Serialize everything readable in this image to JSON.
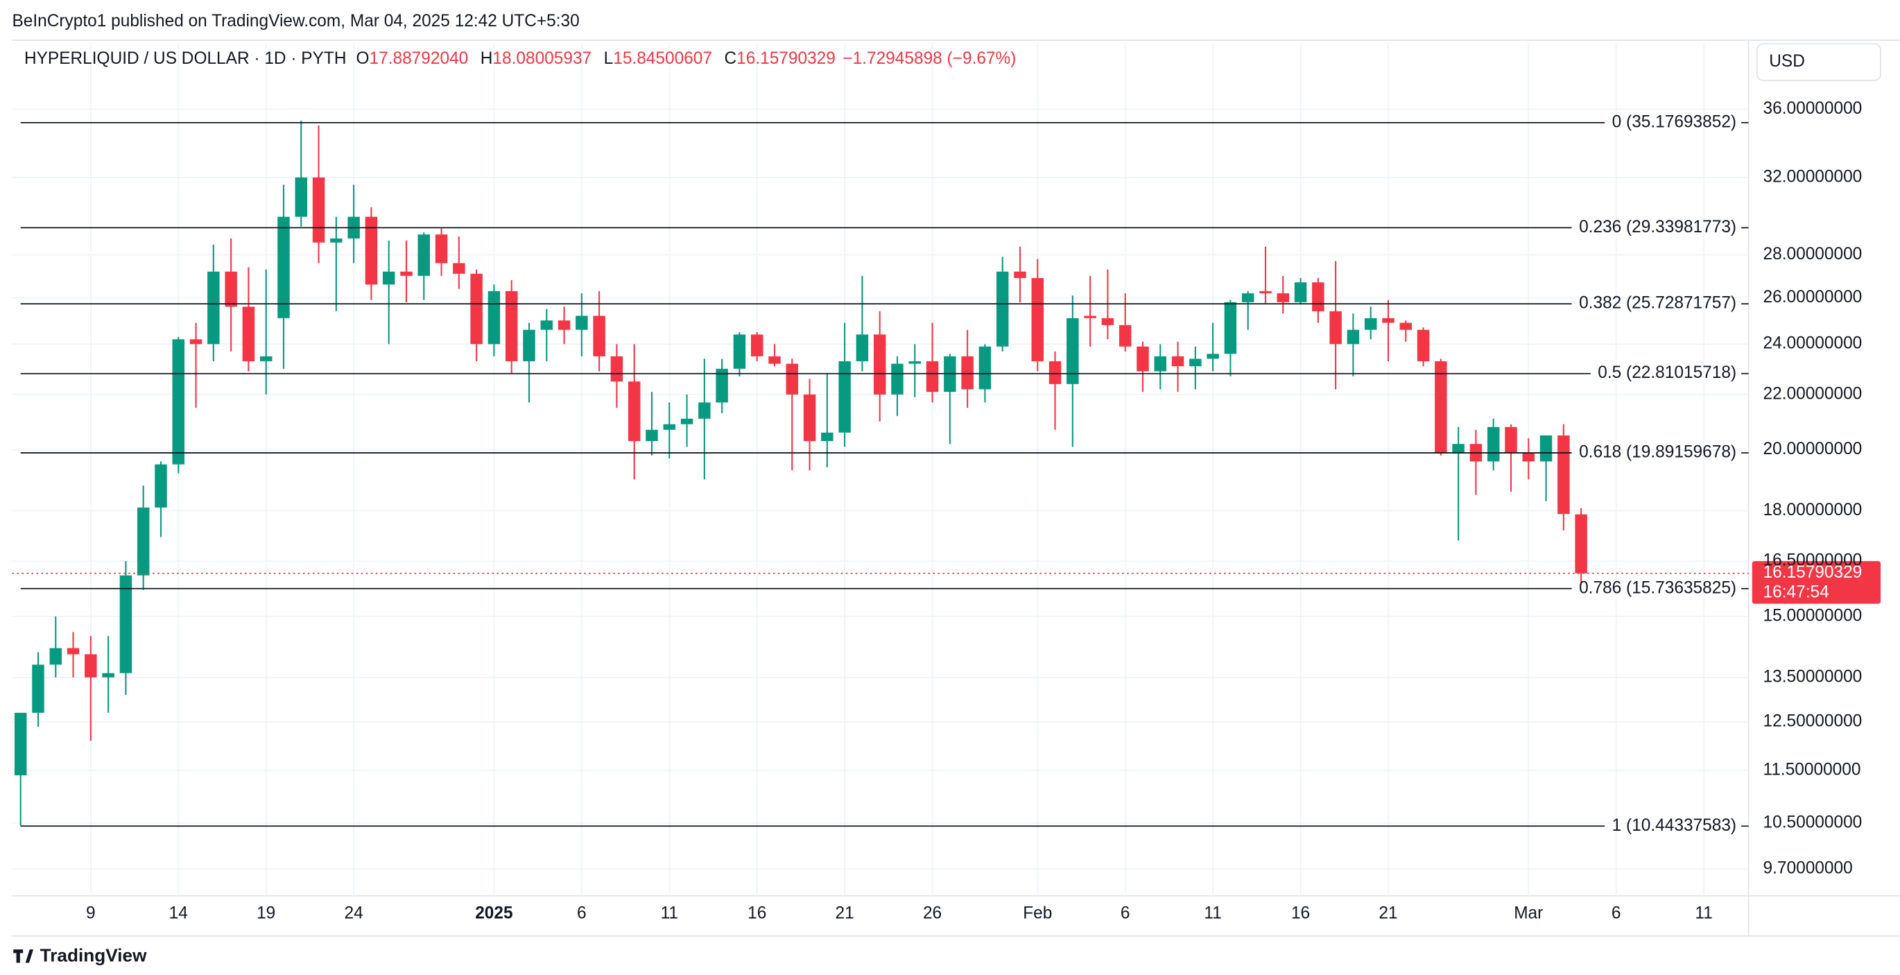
{
  "chart_data": {
    "type": "candlestick",
    "published": "BeInCrypto1 published on TradingView.com, Mar 04, 2025 12:42 UTC+5:30",
    "symbol": "HYPERLIQUID / US DOLLAR · 1D · PYTH",
    "ohlc_legend": [
      {
        "key": "O",
        "value": "17.88792040"
      },
      {
        "key": "H",
        "value": "18.08005937"
      },
      {
        "key": "L",
        "value": "15.84500607"
      },
      {
        "key": "C",
        "value": "16.15790329"
      }
    ],
    "change": "−1.72945898 (−9.67%)",
    "currency": "USD",
    "brand": "TradingView",
    "up_color": "#089981",
    "down_color": "#f23645",
    "log_scale": true,
    "grid": true,
    "ylim": [
      9.26,
      40.3
    ],
    "yticks": [
      {
        "value": 36,
        "label": "36.00000000"
      },
      {
        "value": 32,
        "label": "32.00000000"
      },
      {
        "value": 28,
        "label": "28.00000000"
      },
      {
        "value": 26,
        "label": "26.00000000"
      },
      {
        "value": 24,
        "label": "24.00000000"
      },
      {
        "value": 22,
        "label": "22.00000000"
      },
      {
        "value": 20,
        "label": "20.00000000"
      },
      {
        "value": 18,
        "label": "18.00000000"
      },
      {
        "value": 16.5,
        "label": "16.50000000"
      },
      {
        "value": 15,
        "label": "15.00000000"
      },
      {
        "value": 13.5,
        "label": "13.50000000"
      },
      {
        "value": 12.5,
        "label": "12.50000000"
      },
      {
        "value": 11.5,
        "label": "11.50000000"
      },
      {
        "value": 10.5,
        "label": "10.50000000"
      },
      {
        "value": 9.7,
        "label": "9.70000000"
      }
    ],
    "fib_levels": [
      {
        "value": 35.17693852,
        "label": "0 (35.17693852)"
      },
      {
        "value": 29.33981773,
        "label": "0.236 (29.33981773)"
      },
      {
        "value": 25.72871757,
        "label": "0.382 (25.72871757)"
      },
      {
        "value": 22.81015718,
        "label": "0.5 (22.81015718)"
      },
      {
        "value": 19.89159678,
        "label": "0.618 (19.89159678)"
      },
      {
        "value": 15.73635825,
        "label": "0.786 (15.73635825)"
      },
      {
        "value": 10.44337583,
        "label": "1 (10.44337583)"
      }
    ],
    "last_price": {
      "value": 16.15790329,
      "label": "16.15790329",
      "countdown": "16:47:54"
    },
    "categories": [
      null,
      null,
      null,
      null,
      "9",
      null,
      null,
      null,
      null,
      "14",
      null,
      null,
      null,
      null,
      "19",
      null,
      null,
      null,
      null,
      "24",
      null,
      null,
      null,
      null,
      null,
      null,
      null,
      "2025",
      null,
      null,
      null,
      null,
      "6",
      null,
      null,
      null,
      null,
      "11",
      null,
      null,
      null,
      null,
      "16",
      null,
      null,
      null,
      null,
      "21",
      null,
      null,
      null,
      null,
      "26",
      null,
      null,
      null,
      null,
      null,
      "Feb",
      null,
      null,
      null,
      null,
      "6",
      null,
      null,
      null,
      null,
      "11",
      null,
      null,
      null,
      null,
      "16",
      null,
      null,
      null,
      null,
      "21",
      null,
      null,
      null,
      null,
      null,
      null,
      null,
      "Mar",
      null,
      null,
      null,
      null,
      "6",
      null,
      null,
      null,
      null,
      "11"
    ],
    "open": [
      11.4,
      12.7,
      13.8,
      14.2,
      14.05,
      13.5,
      13.6,
      16.1,
      18.1,
      19.5,
      24.2,
      24.0,
      27.2,
      25.6,
      23.3,
      25.1,
      29.9,
      32.0,
      28.6,
      28.8,
      29.9,
      26.6,
      27.2,
      27.0,
      29.0,
      27.6,
      27.1,
      24.0,
      26.3,
      23.3,
      24.6,
      25.0,
      24.6,
      25.2,
      23.5,
      22.5,
      20.3,
      20.7,
      20.9,
      21.1,
      21.7,
      23.0,
      24.4,
      23.5,
      23.2,
      22.0,
      20.3,
      20.6,
      23.3,
      24.4,
      22.0,
      23.2,
      23.3,
      22.1,
      23.5,
      22.2,
      23.9,
      27.2,
      26.9,
      23.3,
      22.4,
      25.2,
      25.1,
      24.8,
      23.9,
      22.9,
      23.5,
      23.1,
      23.4,
      23.6,
      25.8,
      26.3,
      26.2,
      25.8,
      26.7,
      25.4,
      24.0,
      24.6,
      25.1,
      24.9,
      24.6,
      23.3,
      19.9,
      20.2,
      19.6,
      20.8,
      19.9,
      19.6,
      20.5,
      17.8879204,
      null,
      null,
      null,
      null,
      null,
      null,
      null
    ],
    "high": [
      12.7,
      14.1,
      15.0,
      14.6,
      14.5,
      14.5,
      16.5,
      18.8,
      19.6,
      24.3,
      24.9,
      28.5,
      28.8,
      27.4,
      27.3,
      31.6,
      35.3,
      35.0,
      29.9,
      31.6,
      30.4,
      28.7,
      28.7,
      29.1,
      29.3,
      28.9,
      27.3,
      26.6,
      26.8,
      24.9,
      25.5,
      25.6,
      26.2,
      26.3,
      24.0,
      24.0,
      22.1,
      21.7,
      22.0,
      23.4,
      23.4,
      24.5,
      24.5,
      24.0,
      23.4,
      22.6,
      22.8,
      24.9,
      27.0,
      25.4,
      23.5,
      24.0,
      24.9,
      23.6,
      24.6,
      24.0,
      27.9,
      28.4,
      27.8,
      23.7,
      26.1,
      27.0,
      27.3,
      26.2,
      24.1,
      24.0,
      24.1,
      23.9,
      24.9,
      25.9,
      26.3,
      28.4,
      27.0,
      26.9,
      26.9,
      27.7,
      25.3,
      25.6,
      25.9,
      25.0,
      24.7,
      23.4,
      20.8,
      20.7,
      21.1,
      20.9,
      20.4,
      20.5,
      20.9,
      18.08005937,
      null,
      null,
      null,
      null,
      null,
      null,
      null
    ],
    "low": [
      10.45,
      12.4,
      13.5,
      13.5,
      12.1,
      12.7,
      13.1,
      15.7,
      17.2,
      19.2,
      21.5,
      23.3,
      23.7,
      22.9,
      22.0,
      23.0,
      29.4,
      27.6,
      25.4,
      27.6,
      25.9,
      24.0,
      25.8,
      25.9,
      27.0,
      26.4,
      23.3,
      23.5,
      22.8,
      21.7,
      23.3,
      24.0,
      23.5,
      22.9,
      21.5,
      19.0,
      19.8,
      19.7,
      20.1,
      19.0,
      21.3,
      22.7,
      23.3,
      23.1,
      19.3,
      19.3,
      19.4,
      20.1,
      22.9,
      21.0,
      21.2,
      21.9,
      21.7,
      20.2,
      21.5,
      21.7,
      23.7,
      25.8,
      22.9,
      20.7,
      20.1,
      23.9,
      24.2,
      23.7,
      22.1,
      22.2,
      22.1,
      22.2,
      22.9,
      22.7,
      24.6,
      25.7,
      25.3,
      25.7,
      24.9,
      22.2,
      22.7,
      24.2,
      23.3,
      24.1,
      23.1,
      19.8,
      17.1,
      18.5,
      19.3,
      18.6,
      19.0,
      18.3,
      17.4,
      15.84500607,
      null,
      null,
      null,
      null,
      null,
      null,
      null
    ],
    "close": [
      12.7,
      13.8,
      14.2,
      14.05,
      13.5,
      13.6,
      16.1,
      18.1,
      19.5,
      24.2,
      24.0,
      27.2,
      25.6,
      23.3,
      23.5,
      29.9,
      32.0,
      28.6,
      28.8,
      29.9,
      26.6,
      27.2,
      27.0,
      29.0,
      27.6,
      27.1,
      24.0,
      26.3,
      23.3,
      24.6,
      25.0,
      24.6,
      25.2,
      23.5,
      22.5,
      20.3,
      20.7,
      20.9,
      21.1,
      21.7,
      23.0,
      24.4,
      23.5,
      23.2,
      22.0,
      20.3,
      20.6,
      23.3,
      24.4,
      22.0,
      23.2,
      23.3,
      22.1,
      23.5,
      22.2,
      23.9,
      27.2,
      26.9,
      23.3,
      22.4,
      25.1,
      25.1,
      24.8,
      23.9,
      22.9,
      23.5,
      23.1,
      23.4,
      23.6,
      25.8,
      26.2,
      26.2,
      25.8,
      26.7,
      25.4,
      24.0,
      24.6,
      25.1,
      24.9,
      24.6,
      23.3,
      19.9,
      20.2,
      19.6,
      20.8,
      19.9,
      19.6,
      20.5,
      17.9,
      16.15790329,
      null,
      null,
      null,
      null,
      null,
      null,
      null
    ]
  }
}
